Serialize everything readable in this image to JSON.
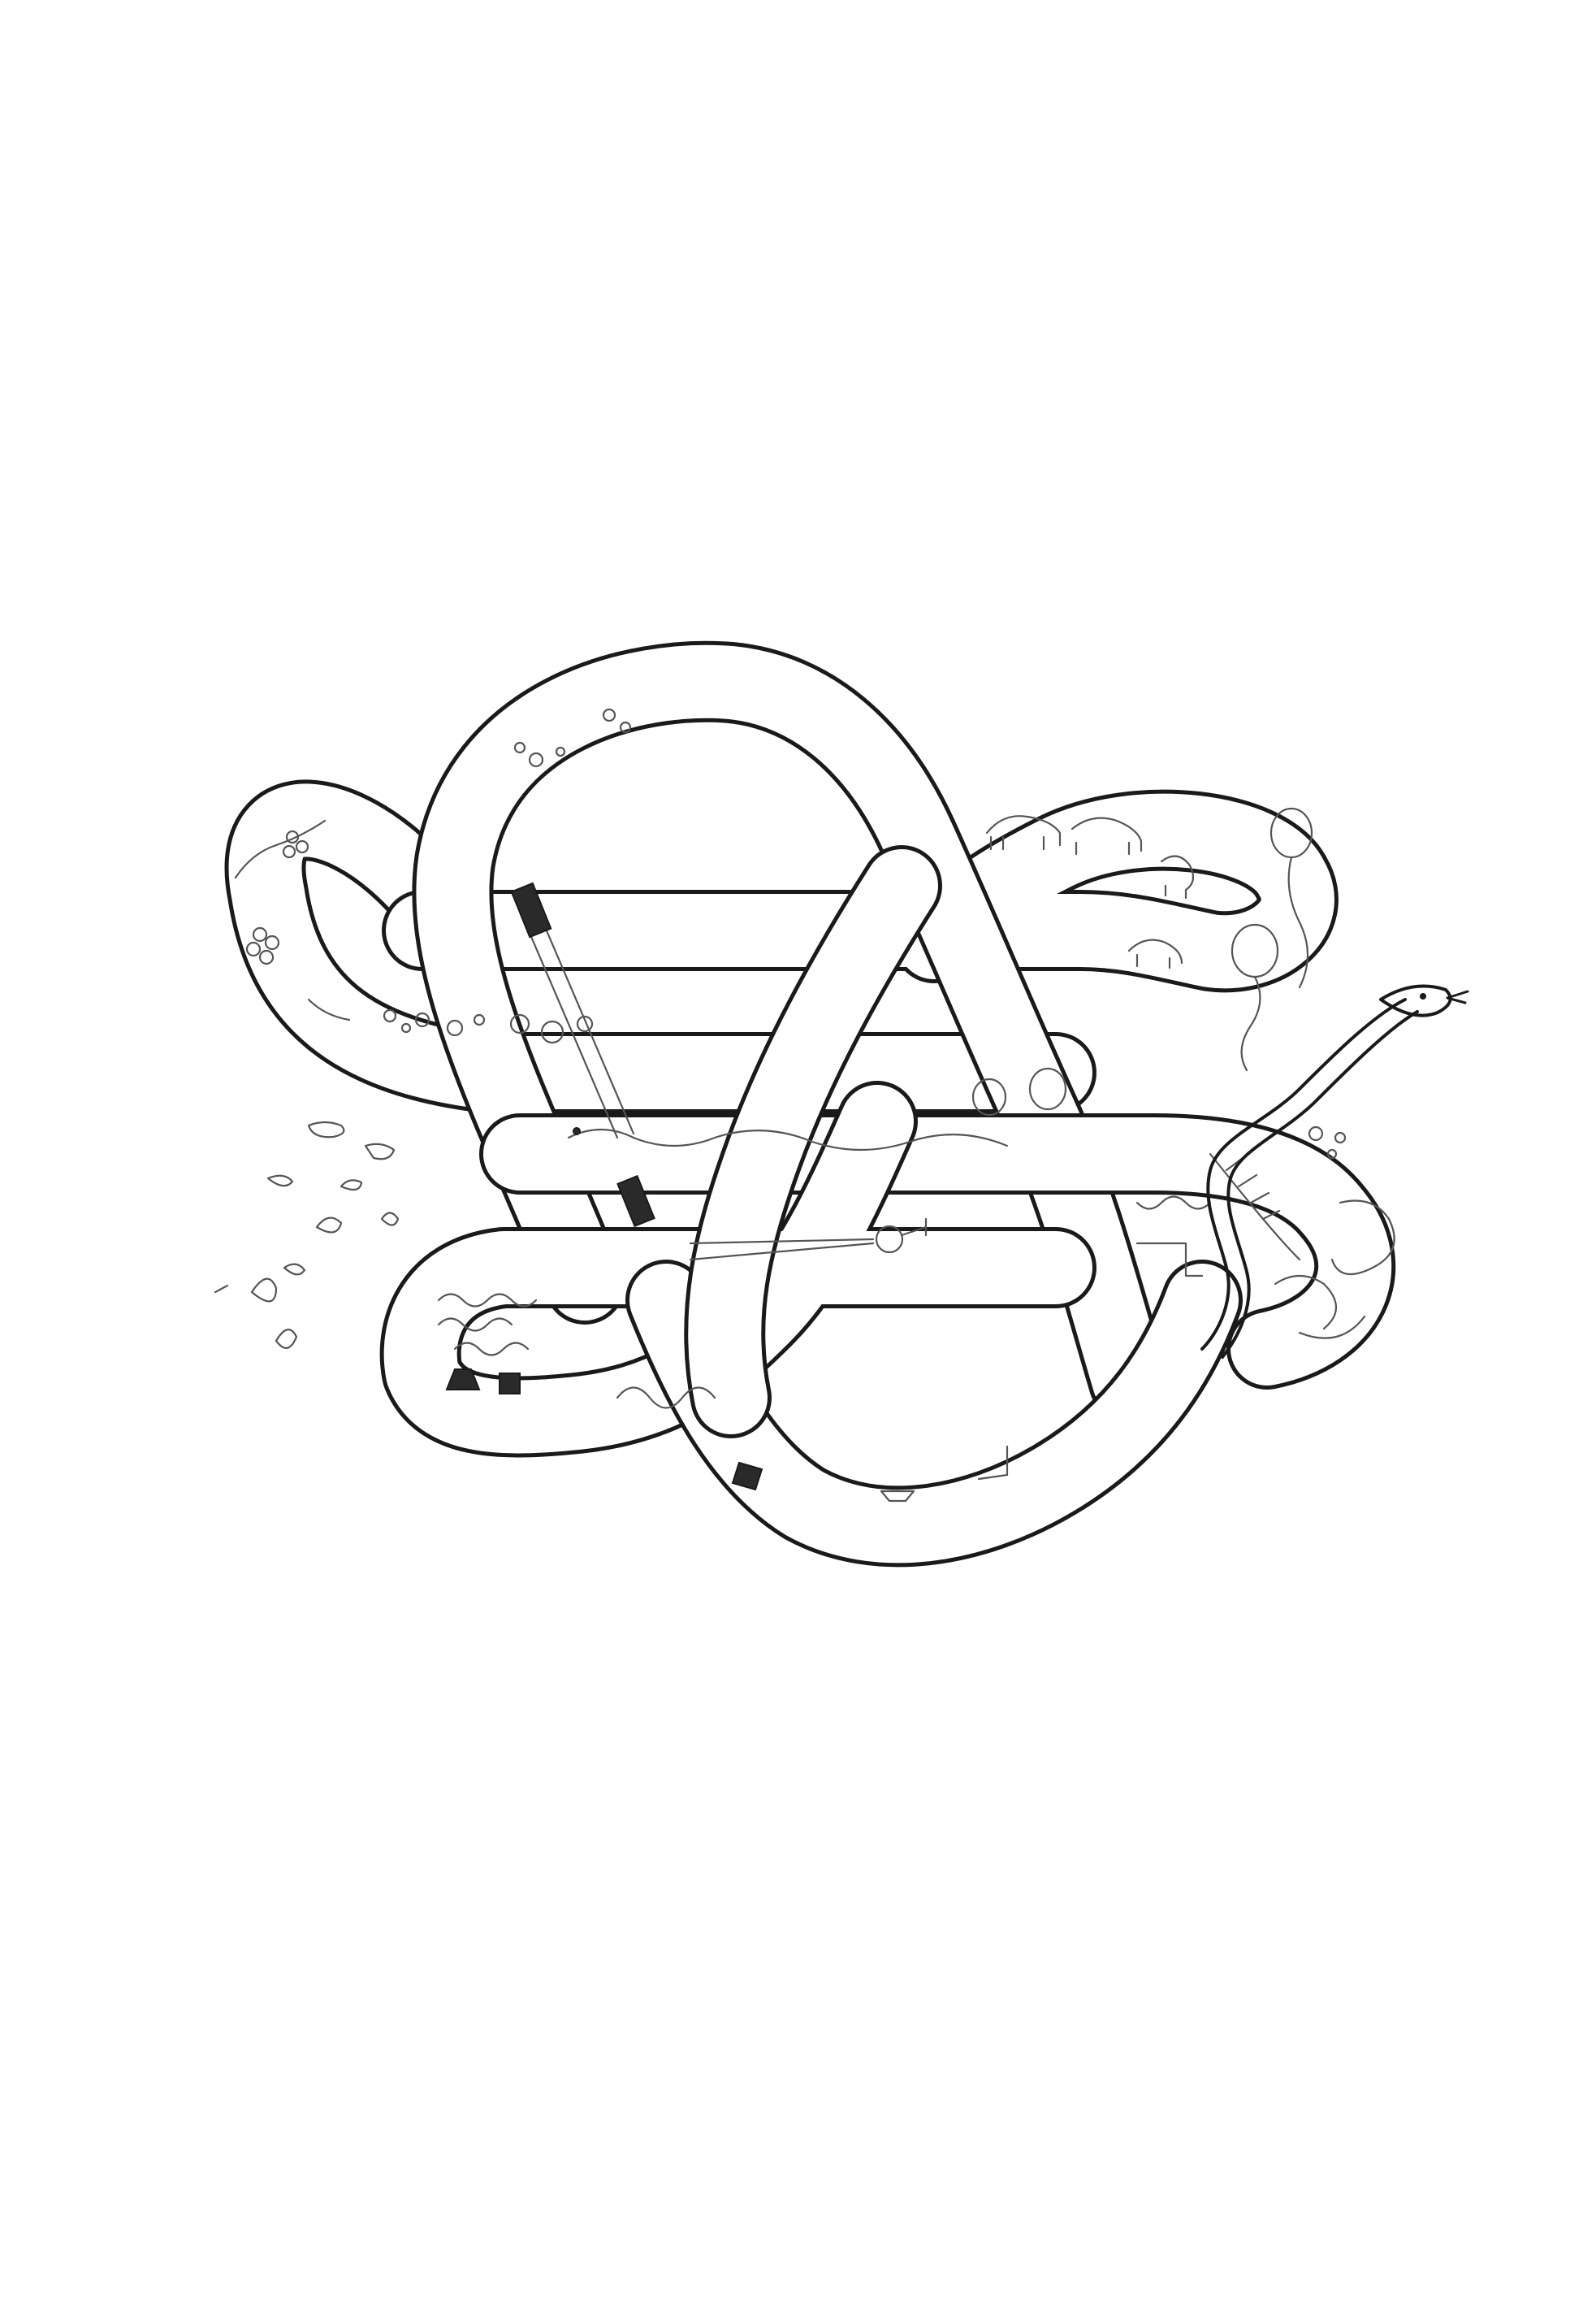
{
  "image": {
    "background": "#ffffff",
    "ink": "#1a1a1a",
    "pencil": "#555555"
  }
}
